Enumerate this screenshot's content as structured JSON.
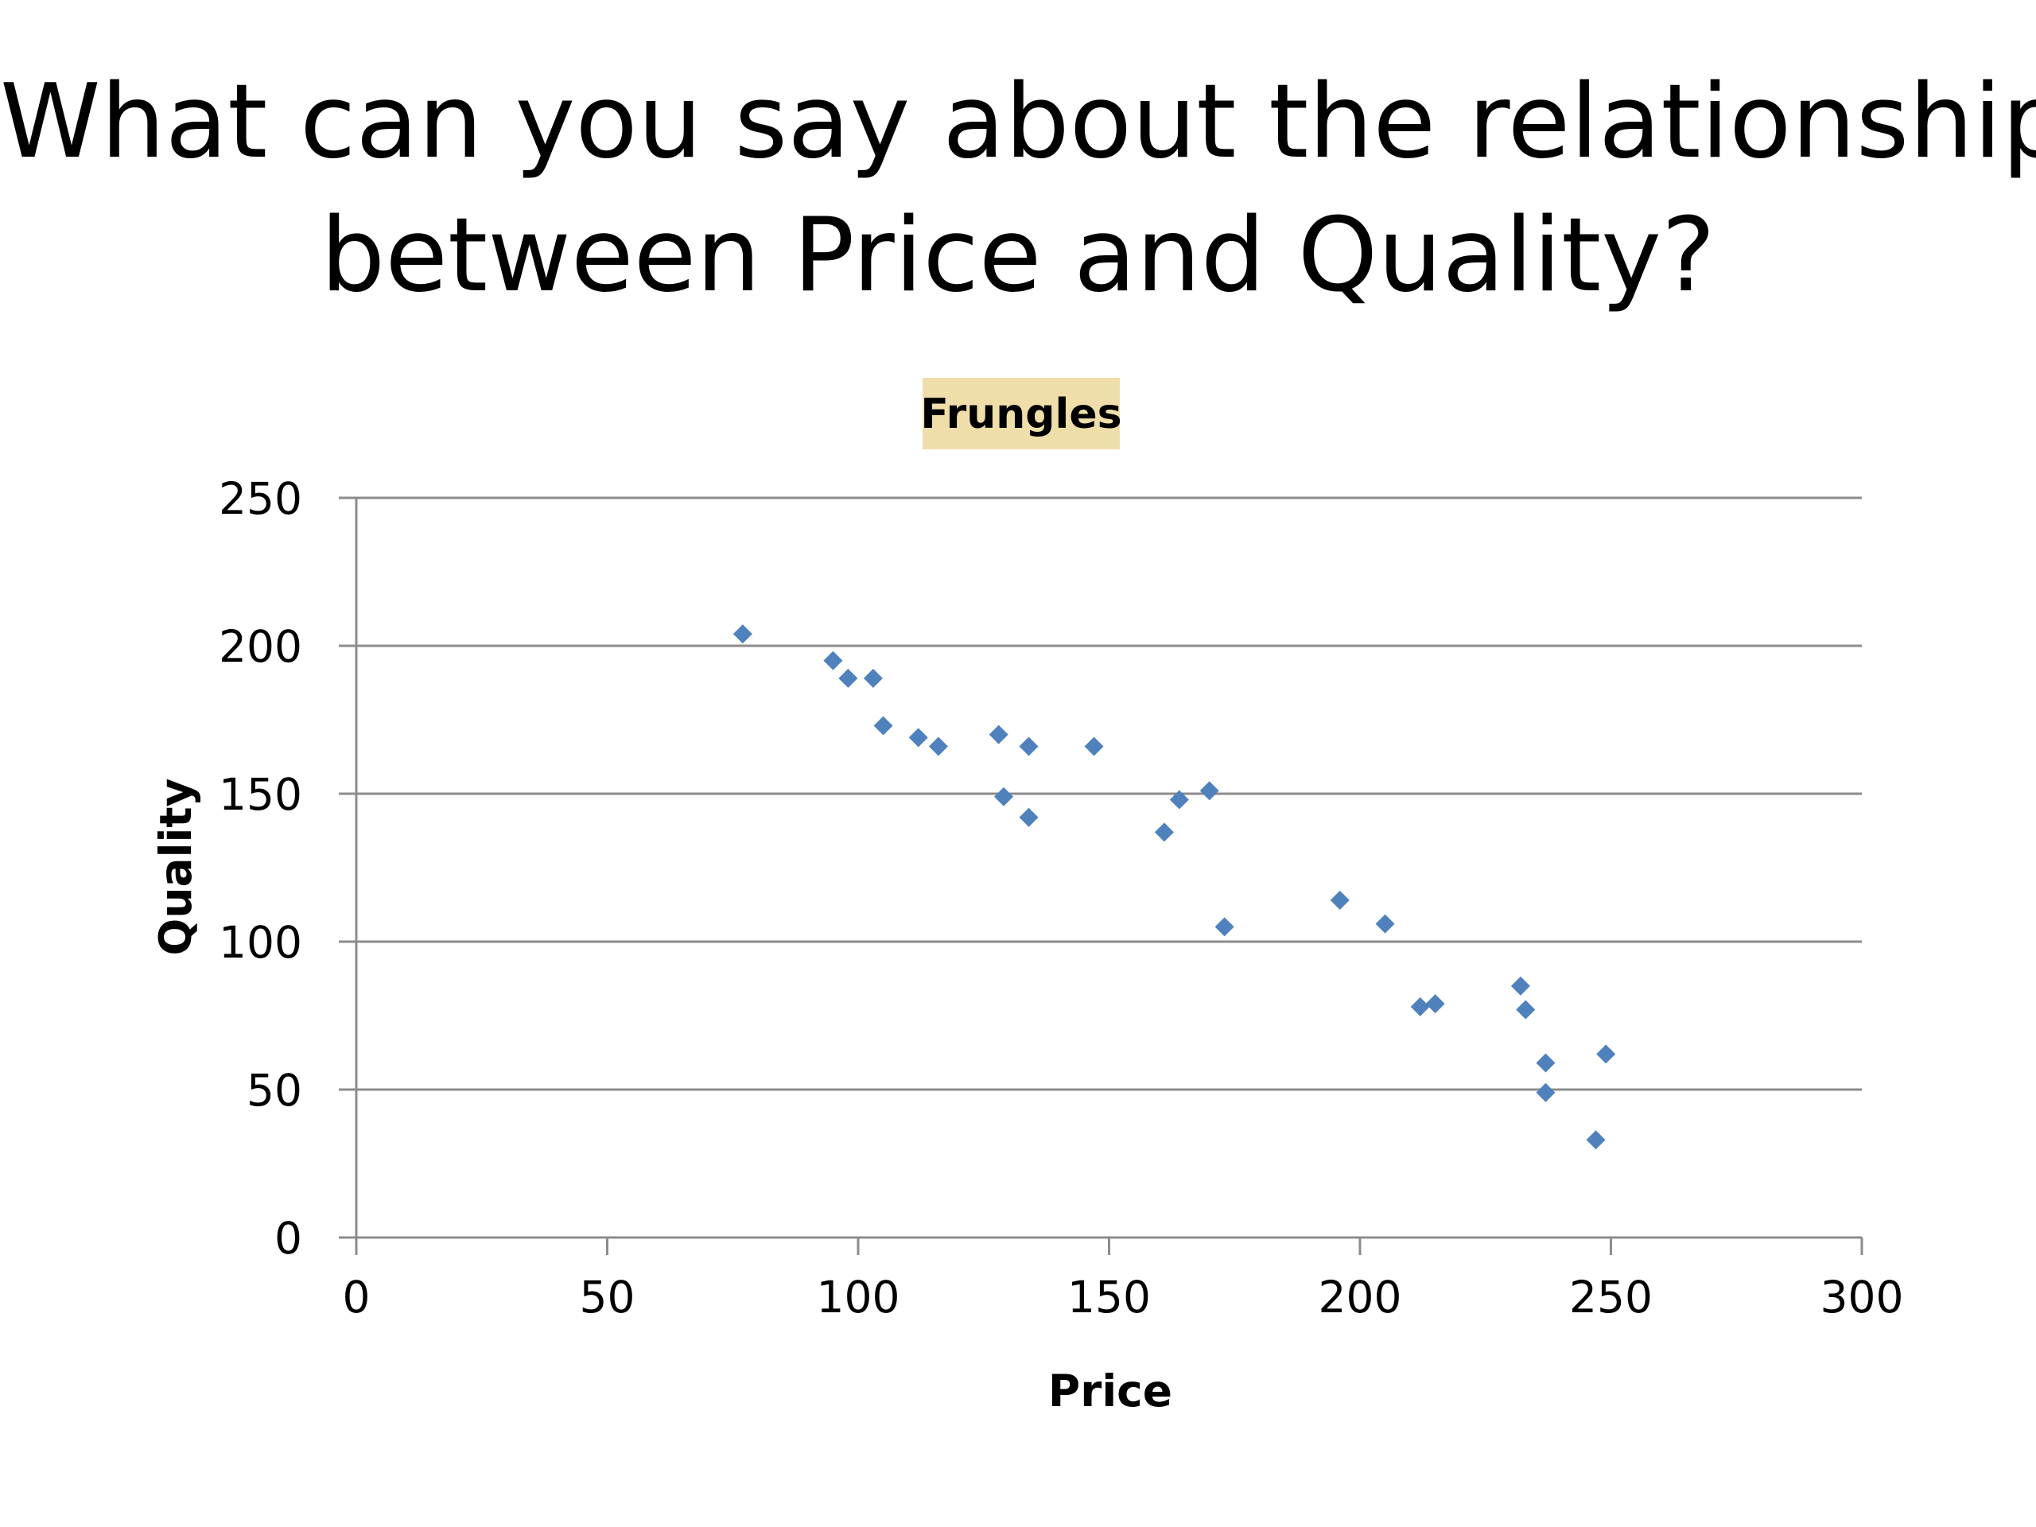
{
  "slide": {
    "title_line1": "What can you say about the relationship",
    "title_line2": "between Price and Quality?"
  },
  "chart_data": {
    "type": "scatter",
    "title": "Frungles",
    "xlabel": "Price",
    "ylabel": "Quality",
    "xlim": [
      0,
      300
    ],
    "ylim": [
      0,
      250
    ],
    "xticks": [
      0,
      50,
      100,
      150,
      200,
      250,
      300
    ],
    "yticks": [
      0,
      50,
      100,
      150,
      200,
      250
    ],
    "grid": "horizontal",
    "legend": "none",
    "title_box_color": "#F0DEAA",
    "point_color": "#4F81BD",
    "series": [
      {
        "points": [
          [
            77,
            204
          ],
          [
            95,
            195
          ],
          [
            98,
            189
          ],
          [
            103,
            189
          ],
          [
            105,
            173
          ],
          [
            112,
            169
          ],
          [
            116,
            166
          ],
          [
            128,
            170
          ],
          [
            129,
            149
          ],
          [
            134,
            166
          ],
          [
            134,
            142
          ],
          [
            147,
            166
          ],
          [
            161,
            137
          ],
          [
            164,
            148
          ],
          [
            170,
            151
          ],
          [
            173,
            105
          ],
          [
            196,
            114
          ],
          [
            205,
            106
          ],
          [
            212,
            78
          ],
          [
            215,
            79
          ],
          [
            232,
            85
          ],
          [
            233,
            77
          ],
          [
            237,
            59
          ],
          [
            237,
            49
          ],
          [
            247,
            33
          ],
          [
            249,
            62
          ]
        ]
      }
    ]
  }
}
